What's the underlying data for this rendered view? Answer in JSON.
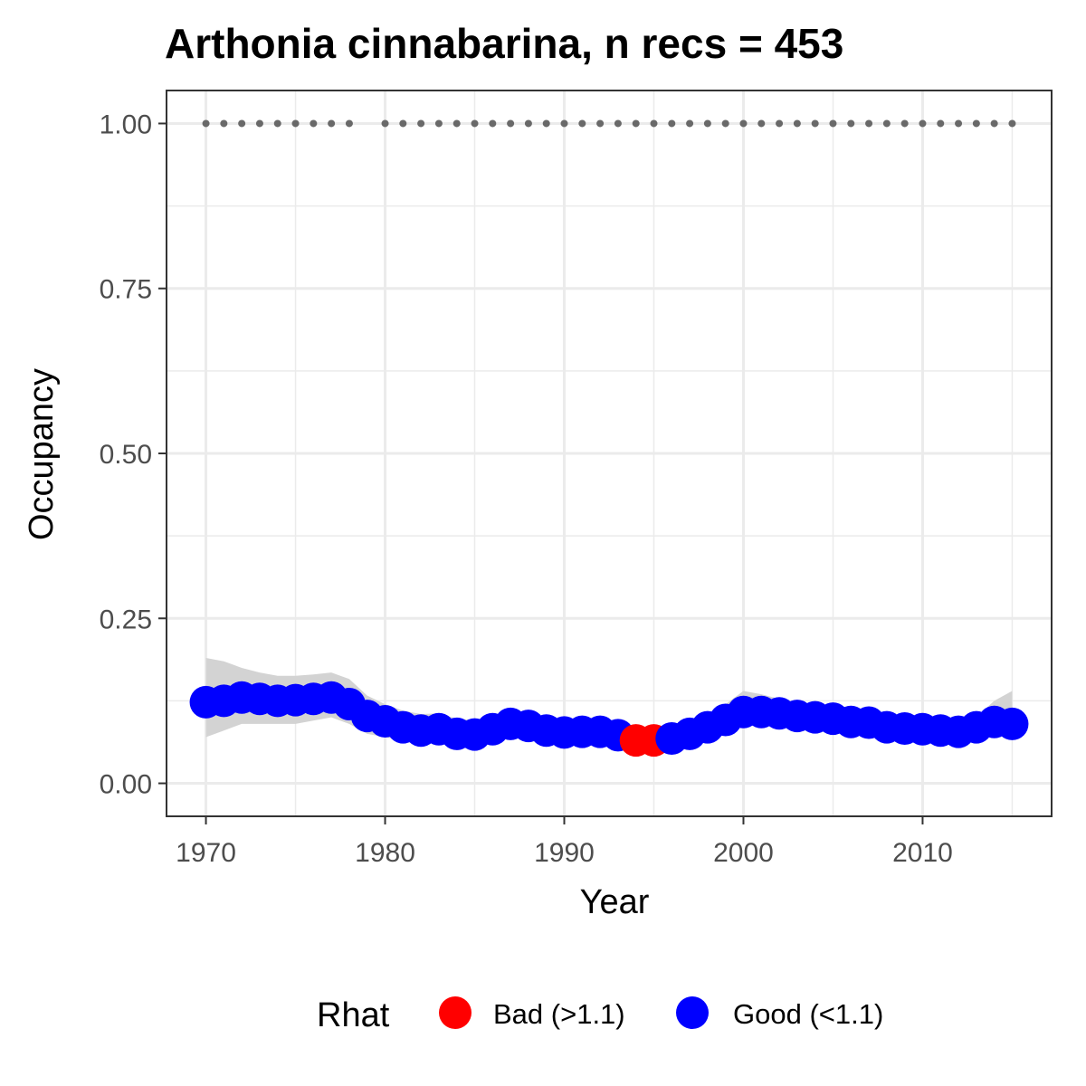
{
  "chart_data": {
    "type": "scatter",
    "title": "Arthonia cinnabarina, n recs = 453",
    "xlabel": "Year",
    "ylabel": "Occupancy",
    "xlim": [
      1967.8,
      2017.2
    ],
    "ylim": [
      -0.05,
      1.05
    ],
    "x_ticks": [
      1970,
      1980,
      1990,
      2000,
      2010
    ],
    "x_tick_labels": [
      "1970",
      "1980",
      "1990",
      "2000",
      "2010"
    ],
    "y_ticks": [
      0,
      0.25,
      0.5,
      0.75,
      1
    ],
    "y_tick_labels": [
      "0.00",
      "0.25",
      "0.50",
      "0.75",
      "1.00"
    ],
    "grid": true,
    "legend": {
      "title": "Rhat",
      "position": "bottom",
      "entries": [
        {
          "label": "Bad (>1.1)",
          "color": "#ff0000"
        },
        {
          "label": "Good (<1.1)",
          "color": "#0000ff"
        }
      ]
    },
    "colors": {
      "bad": "#ff0000",
      "good": "#0000ff",
      "ribbon": "#d3d3d3",
      "detection": "#696969"
    },
    "x": [
      1970,
      1971,
      1972,
      1973,
      1974,
      1975,
      1976,
      1977,
      1978,
      1979,
      1980,
      1981,
      1982,
      1983,
      1984,
      1985,
      1986,
      1987,
      1988,
      1989,
      1990,
      1991,
      1992,
      1993,
      1994,
      1995,
      1996,
      1997,
      1998,
      1999,
      2000,
      2001,
      2002,
      2003,
      2004,
      2005,
      2006,
      2007,
      2008,
      2009,
      2010,
      2011,
      2012,
      2013,
      2014,
      2015
    ],
    "occupancy": [
      0.123,
      0.125,
      0.13,
      0.128,
      0.125,
      0.126,
      0.128,
      0.13,
      0.12,
      0.102,
      0.094,
      0.085,
      0.08,
      0.082,
      0.075,
      0.074,
      0.082,
      0.09,
      0.087,
      0.08,
      0.077,
      0.078,
      0.078,
      0.073,
      0.065,
      0.065,
      0.068,
      0.075,
      0.085,
      0.096,
      0.108,
      0.108,
      0.106,
      0.102,
      0.1,
      0.098,
      0.093,
      0.092,
      0.085,
      0.083,
      0.082,
      0.08,
      0.078,
      0.085,
      0.093,
      0.09
    ],
    "lower": [
      0.07,
      0.08,
      0.09,
      0.09,
      0.09,
      0.09,
      0.095,
      0.1,
      0.09,
      0.075,
      0.07,
      0.065,
      0.063,
      0.065,
      0.06,
      0.06,
      0.065,
      0.072,
      0.07,
      0.065,
      0.063,
      0.064,
      0.064,
      0.06,
      0.055,
      0.055,
      0.057,
      0.062,
      0.07,
      0.08,
      0.09,
      0.09,
      0.088,
      0.085,
      0.082,
      0.08,
      0.076,
      0.075,
      0.07,
      0.068,
      0.067,
      0.065,
      0.063,
      0.068,
      0.072,
      0.07
    ],
    "upper": [
      0.19,
      0.185,
      0.175,
      0.168,
      0.163,
      0.163,
      0.165,
      0.168,
      0.158,
      0.133,
      0.12,
      0.11,
      0.105,
      0.106,
      0.098,
      0.096,
      0.103,
      0.11,
      0.106,
      0.098,
      0.095,
      0.096,
      0.096,
      0.09,
      0.08,
      0.08,
      0.083,
      0.09,
      0.103,
      0.12,
      0.14,
      0.135,
      0.128,
      0.123,
      0.12,
      0.118,
      0.113,
      0.112,
      0.103,
      0.1,
      0.098,
      0.096,
      0.093,
      0.1,
      0.125,
      0.14
    ],
    "rhat": [
      "Good",
      "Good",
      "Good",
      "Good",
      "Good",
      "Good",
      "Good",
      "Good",
      "Good",
      "Good",
      "Good",
      "Good",
      "Good",
      "Good",
      "Good",
      "Good",
      "Good",
      "Good",
      "Good",
      "Good",
      "Good",
      "Good",
      "Good",
      "Good",
      "Bad",
      "Bad",
      "Good",
      "Good",
      "Good",
      "Good",
      "Good",
      "Good",
      "Good",
      "Good",
      "Good",
      "Good",
      "Good",
      "Good",
      "Good",
      "Good",
      "Good",
      "Good",
      "Good",
      "Good",
      "Good",
      "Good"
    ],
    "detection_years": [
      1970,
      1971,
      1972,
      1973,
      1974,
      1975,
      1976,
      1977,
      1978,
      1980,
      1981,
      1982,
      1983,
      1984,
      1985,
      1986,
      1987,
      1988,
      1989,
      1990,
      1991,
      1992,
      1993,
      1994,
      1995,
      1996,
      1997,
      1998,
      1999,
      2000,
      2001,
      2002,
      2003,
      2004,
      2005,
      2006,
      2007,
      2008,
      2009,
      2010,
      2011,
      2012,
      2013,
      2014,
      2015
    ],
    "detection_value": 1.0
  }
}
